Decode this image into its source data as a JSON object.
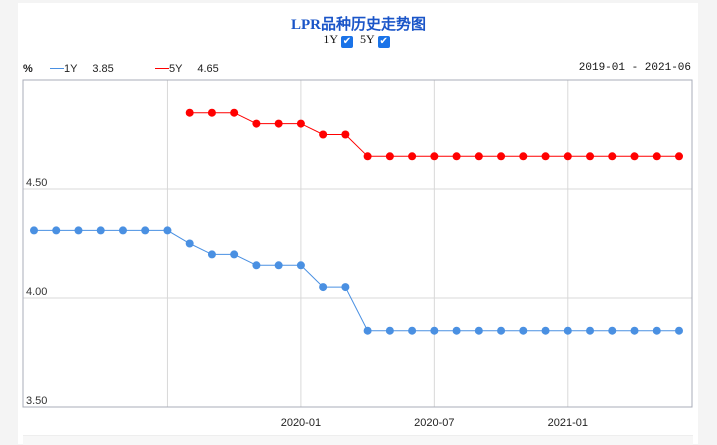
{
  "chart_data": {
    "type": "line",
    "title": "LPR品种历史走势图",
    "ylabel": "%",
    "range_label": "2019-01 - 2021-06",
    "ylim": [
      3.5,
      5.0
    ],
    "yticks": [
      "3.50",
      "4.00",
      "4.50"
    ],
    "ytick_values": [
      3.5,
      4.0,
      4.5
    ],
    "xtick_labels": [
      "2020-01",
      "2020-07",
      "2021-01"
    ],
    "xtick_indices": [
      12,
      18,
      24
    ],
    "x_gridline_indices": [
      6,
      12,
      18,
      24
    ],
    "n_points": 30,
    "series": [
      {
        "name": "1Y",
        "latest": "3.85",
        "color": "#4a90e2",
        "values": [
          4.31,
          4.31,
          4.31,
          4.31,
          4.31,
          4.31,
          4.31,
          4.25,
          4.2,
          4.2,
          4.15,
          4.15,
          4.15,
          4.05,
          4.05,
          3.85,
          3.85,
          3.85,
          3.85,
          3.85,
          3.85,
          3.85,
          3.85,
          3.85,
          3.85,
          3.85,
          3.85,
          3.85,
          3.85,
          3.85
        ]
      },
      {
        "name": "5Y",
        "latest": "4.65",
        "color": "#ff0000",
        "values": [
          null,
          null,
          null,
          null,
          null,
          null,
          null,
          4.85,
          4.85,
          4.85,
          4.8,
          4.8,
          4.8,
          4.75,
          4.75,
          4.65,
          4.65,
          4.65,
          4.65,
          4.65,
          4.65,
          4.65,
          4.65,
          4.65,
          4.65,
          4.65,
          4.65,
          4.65,
          4.65,
          4.65
        ]
      }
    ]
  },
  "toggles": [
    {
      "label": "1Y",
      "checked": true
    },
    {
      "label": "5Y",
      "checked": true
    }
  ]
}
